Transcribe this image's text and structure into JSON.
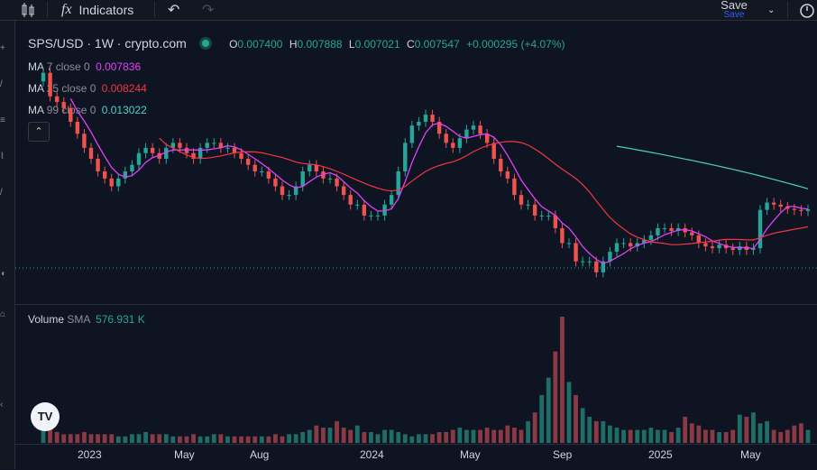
{
  "toolbar": {
    "indicators_label": "Indicators",
    "save_label": "Save",
    "save_sub": "Save"
  },
  "symbol": {
    "title": "SPS/USD · 1W · crypto.com",
    "open_label": "O",
    "open": "0.007400",
    "high_label": "H",
    "high": "0.007888",
    "low_label": "L",
    "low": "0.007021",
    "close_label": "C",
    "close": "0.007547",
    "change": "+0.000295 (+4.07%)"
  },
  "indicators": [
    {
      "name": "MA",
      "params": "7 close 0",
      "value": "0.007836",
      "color": "#e040fb"
    },
    {
      "name": "MA",
      "params": "25 close 0",
      "value": "0.008244",
      "color": "#f23645"
    },
    {
      "name": "MA",
      "params": "99 close 0",
      "value": "0.013022",
      "color": "#4dd0c4"
    }
  ],
  "volume": {
    "label": "Volume",
    "ma_label": "SMA",
    "value": "576.931 K"
  },
  "time_axis": [
    "2023",
    "May",
    "Aug",
    "2024",
    "May",
    "Sep",
    "2025",
    "May"
  ],
  "logo_text": "TV",
  "colors": {
    "up": "#26a69a",
    "down": "#ef5350",
    "ma7": "#e040fb",
    "ma25": "#f23645",
    "ma99": "#4dd0c4",
    "bg": "#0f1422"
  },
  "chart_data": {
    "type": "candlestick",
    "symbol": "SPS/USD",
    "interval": "1W",
    "closes_approx": [
      0.04,
      0.03,
      0.028,
      0.026,
      0.022,
      0.019,
      0.016,
      0.014,
      0.012,
      0.011,
      0.01,
      0.011,
      0.012,
      0.013,
      0.015,
      0.016,
      0.015,
      0.014,
      0.016,
      0.017,
      0.016,
      0.015,
      0.014,
      0.016,
      0.017,
      0.017,
      0.016,
      0.016,
      0.015,
      0.014,
      0.013,
      0.012,
      0.012,
      0.011,
      0.01,
      0.009,
      0.009,
      0.01,
      0.012,
      0.013,
      0.012,
      0.011,
      0.011,
      0.01,
      0.009,
      0.008,
      0.008,
      0.007,
      0.007,
      0.007,
      0.008,
      0.009,
      0.012,
      0.017,
      0.021,
      0.022,
      0.024,
      0.022,
      0.019,
      0.017,
      0.016,
      0.018,
      0.02,
      0.021,
      0.019,
      0.017,
      0.014,
      0.012,
      0.011,
      0.009,
      0.008,
      0.008,
      0.007,
      0.007,
      0.007,
      0.006,
      0.005,
      0.005,
      0.004,
      0.004,
      0.004,
      0.0035,
      0.004,
      0.0045,
      0.005,
      0.005,
      0.0048,
      0.005,
      0.0052,
      0.0055,
      0.006,
      0.006,
      0.0058,
      0.006,
      0.0057,
      0.0055,
      0.005,
      0.0048,
      0.0047,
      0.0049,
      0.0047,
      0.0046,
      0.0048,
      0.0046,
      0.0047,
      0.0075,
      0.0082,
      0.008,
      0.0078,
      0.0076,
      0.0075,
      0.0074,
      0.00755
    ],
    "volume_approx": [
      6,
      9,
      5,
      4,
      4,
      4,
      5,
      4,
      4,
      4,
      4,
      3,
      3,
      4,
      4,
      5,
      4,
      4,
      4,
      3,
      3,
      3,
      4,
      3,
      3,
      4,
      4,
      3,
      3,
      3,
      3,
      3,
      3,
      3,
      4,
      3,
      4,
      4,
      5,
      6,
      8,
      7,
      7,
      10,
      7,
      6,
      8,
      5,
      5,
      4,
      6,
      6,
      5,
      4,
      3,
      4,
      4,
      4,
      5,
      5,
      6,
      7,
      6,
      6,
      6,
      7,
      6,
      6,
      8,
      7,
      6,
      10,
      14,
      22,
      30,
      42,
      58,
      28,
      22,
      16,
      12,
      10,
      10,
      8,
      7,
      6,
      6,
      6,
      6,
      7,
      6,
      6,
      5,
      7,
      12,
      9,
      8,
      6,
      6,
      5,
      5,
      6,
      13,
      12,
      14,
      9,
      10,
      6,
      5,
      6,
      8,
      9,
      6
    ]
  }
}
